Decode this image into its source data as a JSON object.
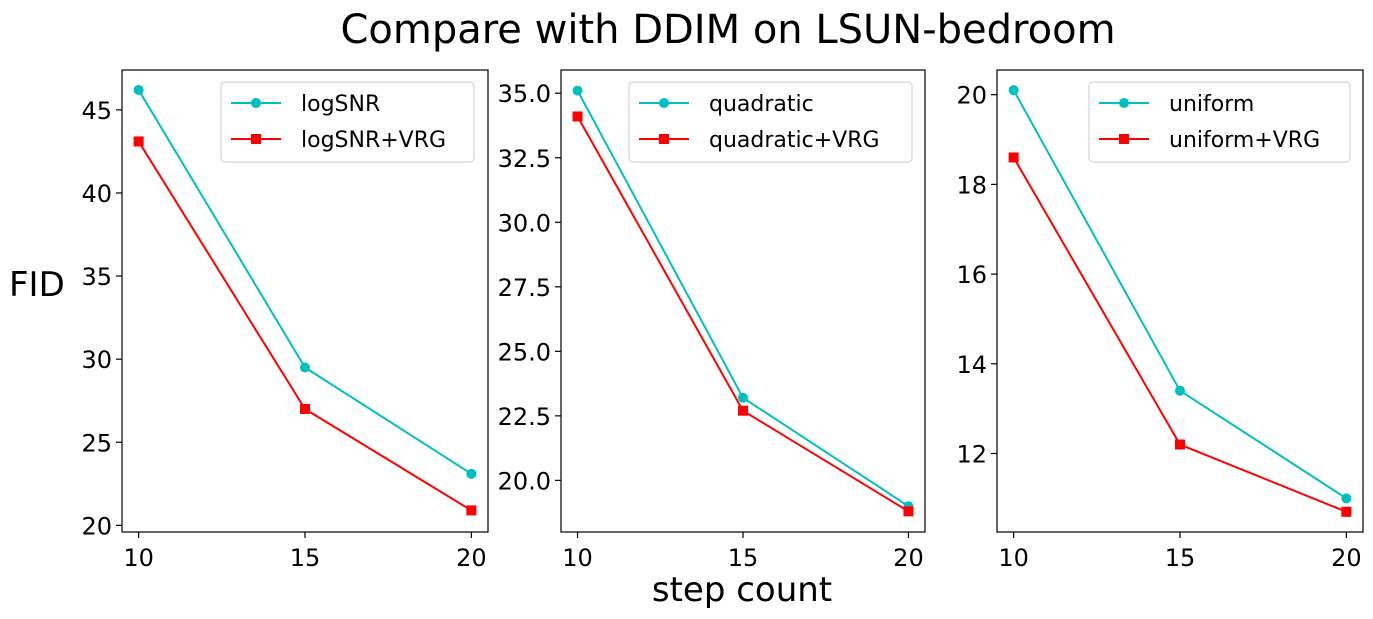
{
  "figure": {
    "title": "Compare with DDIM on LSUN-bedroom",
    "ylabel": "FID",
    "xlabel": "step count"
  },
  "chart_data": [
    {
      "type": "line",
      "x": [
        10,
        15,
        20
      ],
      "xticks": [
        10,
        15,
        20
      ],
      "xlim": [
        9.5,
        20.5
      ],
      "ylim": [
        19.6,
        47.4
      ],
      "yticks": [
        20,
        25,
        30,
        35,
        40,
        45
      ],
      "ytick_labels": [
        "20",
        "25",
        "30",
        "35",
        "40",
        "45"
      ],
      "legend_position": "upper right",
      "series": [
        {
          "name": "logSNR",
          "values": [
            46.2,
            29.5,
            23.1
          ],
          "color": "#00bfbf",
          "marker": "circle"
        },
        {
          "name": "logSNR+VRG",
          "values": [
            43.1,
            27.0,
            20.9
          ],
          "color": "#ff0000",
          "marker": "square"
        }
      ]
    },
    {
      "type": "line",
      "x": [
        10,
        15,
        20
      ],
      "xticks": [
        10,
        15,
        20
      ],
      "xlim": [
        9.5,
        20.5
      ],
      "ylim": [
        18.0,
        35.9
      ],
      "yticks": [
        20.0,
        22.5,
        25.0,
        27.5,
        30.0,
        32.5,
        35.0
      ],
      "ytick_labels": [
        "20.0",
        "22.5",
        "25.0",
        "27.5",
        "30.0",
        "32.5",
        "35.0"
      ],
      "legend_position": "upper right",
      "series": [
        {
          "name": "quadratic",
          "values": [
            35.1,
            23.2,
            19.0
          ],
          "color": "#00bfbf",
          "marker": "circle"
        },
        {
          "name": "quadratic+VRG",
          "values": [
            34.1,
            22.7,
            18.8
          ],
          "color": "#ff0000",
          "marker": "square"
        }
      ]
    },
    {
      "type": "line",
      "x": [
        10,
        15,
        20
      ],
      "xticks": [
        10,
        15,
        20
      ],
      "xlim": [
        9.5,
        20.5
      ],
      "ylim": [
        10.25,
        20.55
      ],
      "yticks": [
        12,
        14,
        16,
        18,
        20
      ],
      "ytick_labels": [
        "12",
        "14",
        "16",
        "18",
        "20"
      ],
      "legend_position": "upper right",
      "series": [
        {
          "name": "uniform",
          "values": [
            20.1,
            13.4,
            11.0
          ],
          "color": "#00bfbf",
          "marker": "circle"
        },
        {
          "name": "uniform+VRG",
          "values": [
            18.6,
            12.2,
            10.7
          ],
          "color": "#ff0000",
          "marker": "square"
        }
      ]
    }
  ]
}
